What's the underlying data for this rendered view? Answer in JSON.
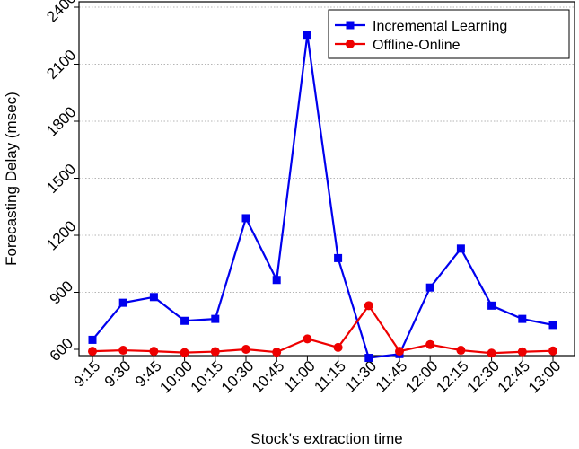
{
  "chart_data": {
    "type": "line",
    "categories": [
      "9:15",
      "9:30",
      "9:45",
      "10:00",
      "10:15",
      "10:30",
      "10:45",
      "11:00",
      "11:15",
      "11:30",
      "11:45",
      "12:00",
      "12:15",
      "12:30",
      "12:45",
      "13:00"
    ],
    "series": [
      {
        "name": "Incremental Learning",
        "color": "#0000ee",
        "marker": "square",
        "values": [
          650,
          845,
          875,
          750,
          760,
          1290,
          965,
          2255,
          1080,
          555,
          575,
          925,
          1130,
          830,
          760,
          728
        ]
      },
      {
        "name": "Offline-Online",
        "color": "#ee0000",
        "marker": "circle",
        "values": [
          590,
          595,
          590,
          583,
          588,
          600,
          585,
          655,
          610,
          830,
          590,
          625,
          595,
          580,
          587,
          592
        ]
      }
    ],
    "xlabel": "Stock's extraction time",
    "ylabel": "Forecasting Delay (msec)",
    "ylim": [
      600,
      2400
    ],
    "yticks": [
      600,
      900,
      1200,
      1500,
      1800,
      2100,
      2400
    ],
    "grid": true,
    "legend_position": "top-right"
  }
}
